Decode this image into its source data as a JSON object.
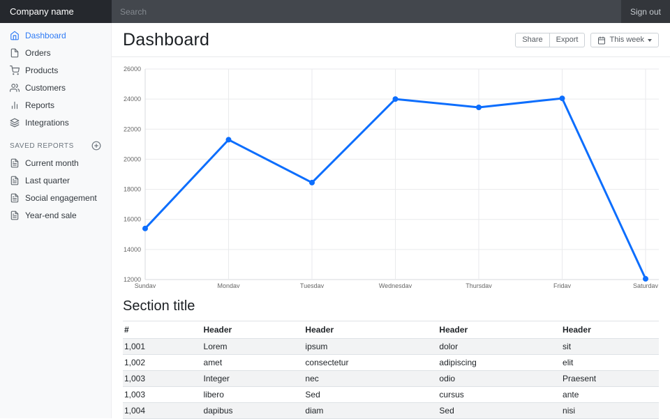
{
  "navbar": {
    "brand": "Company name",
    "search_placeholder": "Search",
    "sign_out": "Sign out"
  },
  "sidebar": {
    "nav": [
      {
        "label": "Dashboard",
        "icon": "home-icon",
        "active": true
      },
      {
        "label": "Orders",
        "icon": "file-icon",
        "active": false
      },
      {
        "label": "Products",
        "icon": "shopping-cart-icon",
        "active": false
      },
      {
        "label": "Customers",
        "icon": "users-icon",
        "active": false
      },
      {
        "label": "Reports",
        "icon": "bar-chart-icon",
        "active": false
      },
      {
        "label": "Integrations",
        "icon": "layers-icon",
        "active": false
      }
    ],
    "saved_reports_heading": "Saved reports",
    "saved_reports": [
      "Current month",
      "Last quarter",
      "Social engagement",
      "Year-end sale"
    ]
  },
  "header": {
    "title": "Dashboard",
    "share_label": "Share",
    "export_label": "Export",
    "period_label": "This week"
  },
  "chart_data": {
    "type": "line",
    "title": "",
    "categories": [
      "Sunday",
      "Monday",
      "Tuesday",
      "Wednesday",
      "Thursday",
      "Friday",
      "Saturday"
    ],
    "values": [
      15400,
      21300,
      18450,
      24000,
      23450,
      24050,
      12050
    ],
    "xlabel": "",
    "ylabel": "",
    "ylim": [
      12000,
      26000
    ],
    "ytick_step": 2000,
    "grid": true,
    "legend_position": "none",
    "line_color": "#0d6efd",
    "point_radius": 4,
    "line_width": 3,
    "tick_color": "#666666",
    "grid_color": "#e9eaec",
    "axis_color": "#d7dadd"
  },
  "section": {
    "title": "Section title"
  },
  "table": {
    "headers": [
      "#",
      "Header",
      "Header",
      "Header",
      "Header"
    ],
    "col_widths": [
      "14%",
      "19%",
      "25%",
      "23%",
      "19%"
    ],
    "rows": [
      [
        "1,001",
        "Lorem",
        "ipsum",
        "dolor",
        "sit"
      ],
      [
        "1,002",
        "amet",
        "consectetur",
        "adipiscing",
        "elit"
      ],
      [
        "1,003",
        "Integer",
        "nec",
        "odio",
        "Praesent"
      ],
      [
        "1,003",
        "libero",
        "Sed",
        "cursus",
        "ante"
      ],
      [
        "1,004",
        "dapibus",
        "diam",
        "Sed",
        "nisi"
      ]
    ]
  },
  "colors": {
    "accent": "#2f7bf5",
    "navbar_bg": "#33363b",
    "brand_bg": "#25282d",
    "search_bg": "#43474d"
  }
}
